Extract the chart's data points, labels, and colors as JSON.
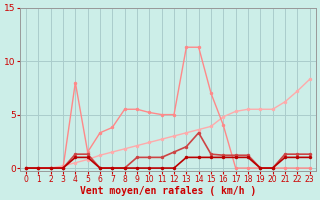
{
  "title": "",
  "xlabel": "Vent moyen/en rafales ( km/h )",
  "ylabel": "",
  "bg_color": "#cceee8",
  "grid_color": "#aacccc",
  "ylim": [
    -0.3,
    15
  ],
  "xlim": [
    -0.5,
    23.5
  ],
  "yticks": [
    0,
    5,
    10,
    15
  ],
  "xticks": [
    0,
    1,
    2,
    3,
    4,
    5,
    6,
    7,
    8,
    9,
    10,
    11,
    12,
    13,
    14,
    15,
    16,
    17,
    18,
    19,
    20,
    21,
    22,
    23
  ],
  "series": [
    {
      "name": "line1_dark_red",
      "x": [
        0,
        1,
        2,
        3,
        4,
        5,
        6,
        7,
        8,
        9,
        10,
        11,
        12,
        13,
        14,
        15,
        16,
        17,
        18,
        19,
        20,
        21,
        22,
        23
      ],
      "y": [
        0,
        0,
        0,
        0,
        1,
        1,
        0,
        0,
        0,
        0,
        0,
        0,
        0,
        1,
        1,
        1,
        1,
        1,
        1,
        0,
        0,
        1,
        1,
        1
      ],
      "color": "#bb0000",
      "lw": 1.2,
      "ms": 2.5
    },
    {
      "name": "line2_medium",
      "x": [
        0,
        1,
        2,
        3,
        4,
        5,
        6,
        7,
        8,
        9,
        10,
        11,
        12,
        13,
        14,
        15,
        16,
        17,
        18,
        19,
        20,
        21,
        22,
        23
      ],
      "y": [
        0,
        0,
        0,
        0,
        1.3,
        1.3,
        0,
        0,
        0,
        1,
        1,
        1,
        1.5,
        2,
        3.3,
        1.3,
        1.2,
        1.2,
        1.2,
        0,
        0,
        1.3,
        1.3,
        1.3
      ],
      "color": "#cc4444",
      "lw": 1.2,
      "ms": 2.5
    },
    {
      "name": "line3_spiky",
      "x": [
        0,
        1,
        2,
        3,
        4,
        5,
        6,
        7,
        8,
        9,
        10,
        11,
        12,
        13,
        14,
        15,
        16,
        17,
        18,
        19,
        20,
        21,
        22,
        23
      ],
      "y": [
        0,
        0,
        0,
        0,
        8,
        1.5,
        3.3,
        3.8,
        5.5,
        5.5,
        5.2,
        5.0,
        5.0,
        11.3,
        11.3,
        7.0,
        4.0,
        0,
        0,
        0,
        0,
        0,
        0,
        0
      ],
      "color": "#ff8888",
      "lw": 1.0,
      "ms": 2.5
    },
    {
      "name": "line4_gradual",
      "x": [
        0,
        1,
        2,
        3,
        4,
        5,
        6,
        7,
        8,
        9,
        10,
        11,
        12,
        13,
        14,
        15,
        16,
        17,
        18,
        19,
        20,
        21,
        22,
        23
      ],
      "y": [
        0,
        0,
        0,
        0.2,
        0.5,
        0.8,
        1.2,
        1.5,
        1.8,
        2.1,
        2.4,
        2.7,
        3.0,
        3.3,
        3.6,
        3.9,
        4.8,
        5.3,
        5.5,
        5.5,
        5.5,
        6.2,
        7.2,
        8.3
      ],
      "color": "#ffaaaa",
      "lw": 1.0,
      "ms": 2.5
    }
  ]
}
